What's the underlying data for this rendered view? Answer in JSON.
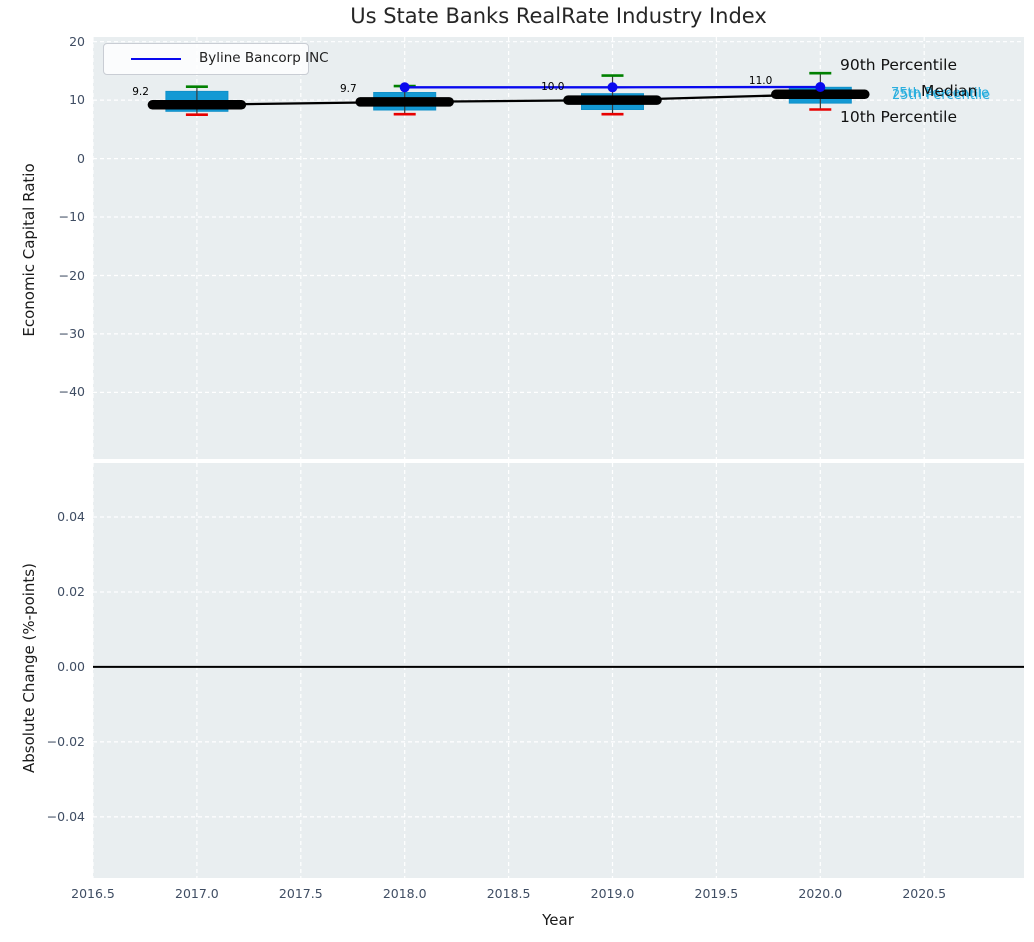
{
  "chart_data": [
    {
      "type": "boxplot",
      "title": "Us State Banks RealRate Industry Index",
      "ylabel": "Economic Capital Ratio",
      "ylim": [
        -51.4,
        20.8
      ],
      "ytick_values": [
        20,
        10,
        0,
        -10,
        -20,
        -30,
        -40
      ],
      "ytick_labels": [
        "20",
        "10",
        "0",
        "−10",
        "−20",
        "−30",
        "−40"
      ],
      "xlim": [
        2016.5,
        2020.98
      ],
      "xtick_values": [
        2016.5,
        2017.0,
        2017.5,
        2018.0,
        2018.5,
        2019.0,
        2019.5,
        2020.0,
        2020.5
      ],
      "xtick_labels": [
        "2016.5",
        "2017.0",
        "2017.5",
        "2018.0",
        "2018.5",
        "2019.0",
        "2019.5",
        "2020.0",
        "2020.5"
      ],
      "grid": {
        "on": true,
        "style": "dashed",
        "color": "#ffffff"
      },
      "legend": {
        "label": "Byline Bancorp INC",
        "position": "upper left"
      },
      "boxes": [
        {
          "x": 2017,
          "p10": 7.5,
          "q1": 8.1,
          "median": 9.2,
          "q3": 11.5,
          "p90": 12.3
        },
        {
          "x": 2018,
          "p10": 7.6,
          "q1": 8.3,
          "median": 9.7,
          "q3": 11.3,
          "p90": 12.4
        },
        {
          "x": 2019,
          "p10": 7.6,
          "q1": 8.4,
          "median": 10.0,
          "q3": 11.1,
          "p90": 14.2
        },
        {
          "x": 2020,
          "p10": 8.4,
          "q1": 9.5,
          "median": 11.0,
          "q3": 12.2,
          "p90": 14.6
        }
      ],
      "median_series": {
        "name": "Median",
        "x": [
          2017,
          2018,
          2019,
          2020
        ],
        "y": [
          9.2,
          9.7,
          10.0,
          11.0
        ]
      },
      "company_series": {
        "name": "Byline Bancorp INC",
        "x": [
          2018,
          2019,
          2020
        ],
        "y": [
          12.2,
          12.2,
          12.25
        ]
      },
      "annotations": [
        "9.2",
        "9.7",
        "10.0",
        "11.0"
      ],
      "right_labels": {
        "p90": "90th Percentile",
        "p75": "75th Percentile",
        "median": "Median",
        "p25": "25th Percentile",
        "p10": "10th Percentile"
      },
      "colors": {
        "box_fill": "#1399d4",
        "box_edge": "#1090c9",
        "p90_cap": "#008000",
        "p10_cap": "#e80000",
        "median_line": "#000000",
        "company_line": "#0909ee",
        "cyan_label": "#29aede",
        "axes_bg": "#e9eef0",
        "grid": "#ffffff",
        "tick_text": "#3f4d63"
      }
    },
    {
      "type": "line",
      "ylabel": "Absolute Change (%-points)",
      "xlabel": "Year",
      "ylim": [
        -0.0563,
        0.0544
      ],
      "ytick_values": [
        0.04,
        0.02,
        0.0,
        -0.02,
        -0.04
      ],
      "ytick_labels": [
        "0.04",
        "0.02",
        "0.00",
        "−0.02",
        "−0.04"
      ],
      "xlim": [
        2016.5,
        2020.98
      ],
      "xtick_values": [
        2016.5,
        2017.0,
        2017.5,
        2018.0,
        2018.5,
        2019.0,
        2019.5,
        2020.0,
        2020.5
      ],
      "xtick_labels": [
        "2016.5",
        "2017.0",
        "2017.5",
        "2018.0",
        "2018.5",
        "2019.0",
        "2019.5",
        "2020.0",
        "2020.5"
      ],
      "zero_line": 0.0,
      "series": []
    }
  ]
}
